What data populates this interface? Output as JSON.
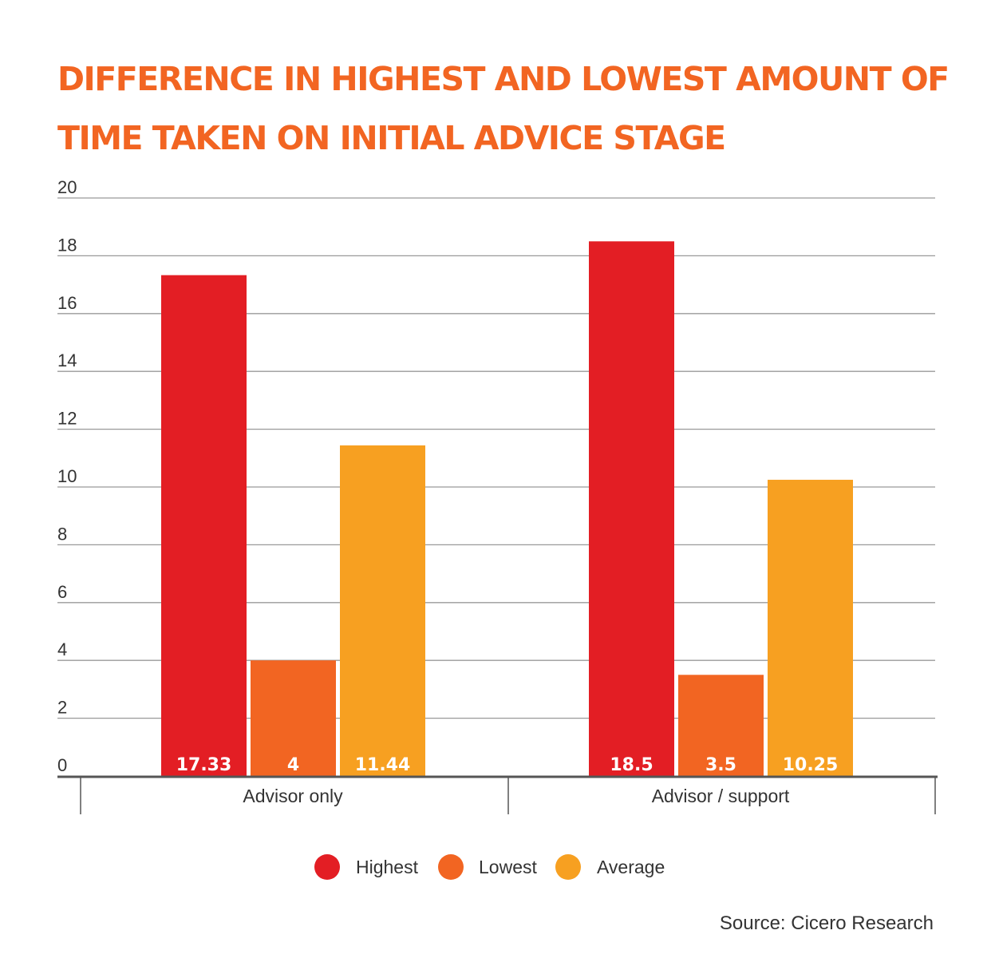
{
  "title_lines": [
    "DIFFERENCE IN HIGHEST AND LOWEST AMOUNT OF",
    "TIME TAKEN ON INITIAL ADVICE STAGE"
  ],
  "source": "Source: Cicero Research",
  "colors": {
    "title": "#f26522",
    "highest": "#e31e24",
    "lowest": "#f26522",
    "average": "#f7a021",
    "grid": "#999999",
    "axis": "#555555"
  },
  "chart_data": {
    "type": "bar",
    "title": "DIFFERENCE IN HIGHEST AND LOWEST AMOUNT OF TIME TAKEN ON INITIAL ADVICE STAGE",
    "categories": [
      "Advisor only",
      "Advisor / support"
    ],
    "series": [
      {
        "name": "Highest",
        "color": "#e31e24",
        "values": [
          17.33,
          18.5
        ],
        "labels": [
          "17.33",
          "18.5"
        ]
      },
      {
        "name": "Lowest",
        "color": "#f26522",
        "values": [
          4,
          3.5
        ],
        "labels": [
          "4",
          "3.5"
        ]
      },
      {
        "name": "Average",
        "color": "#f7a021",
        "values": [
          11.44,
          10.25
        ],
        "labels": [
          "11.44",
          "10.25"
        ]
      }
    ],
    "yticks": [
      "0",
      "2",
      "4",
      "6",
      "8",
      "10",
      "12",
      "14",
      "16",
      "18",
      "20"
    ],
    "ylim": [
      0,
      20
    ],
    "grid": true,
    "legend": "bottom-center",
    "data_labels": "inside-bottom"
  }
}
